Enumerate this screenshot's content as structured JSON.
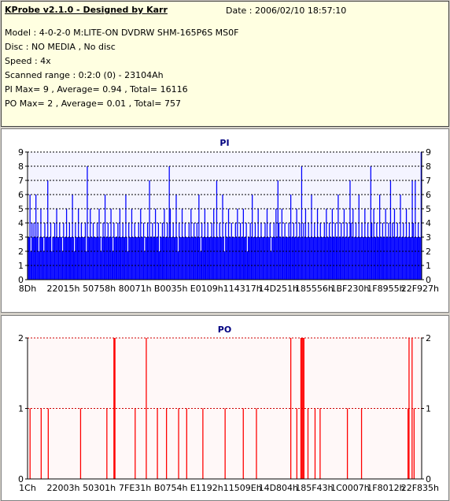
{
  "header": {
    "title": "KProbe v2.1.0 - Designed by Karr",
    "date": "Date : 2006/02/10 18:57:10",
    "lines": [
      "Model : 4-0-2-0 M:LITE-ON DVDRW SHM-165P6S MS0F",
      "Disc : NO MEDIA , No disc",
      "Speed : 4x",
      "Scanned range : 0:2:0 (0) - 23104Ah",
      "PI Max= 9 , Average= 0.94 , Total= 16116",
      "PO Max= 2 , Average= 0.01 , Total= 757"
    ]
  },
  "chart_data": [
    {
      "type": "bar",
      "title": "PI",
      "ylim": [
        0,
        9
      ],
      "yticks": [
        "0",
        "1",
        "2",
        "3",
        "4",
        "5",
        "6",
        "7",
        "8",
        "9"
      ],
      "xticks": [
        "8Dh",
        "22015h",
        "50758h",
        "80071h",
        "B0035h",
        "E0109h",
        "114317h",
        "14D251h",
        "185556h",
        "1BF230h",
        "1F8955h",
        "22F927h"
      ],
      "color": "#0000ff",
      "grid": true,
      "values": [
        3,
        3,
        6,
        2,
        4,
        3,
        4,
        3,
        6,
        3,
        4,
        2,
        3,
        5,
        3,
        3,
        2,
        4,
        3,
        3,
        7,
        3,
        3,
        4,
        2,
        3,
        3,
        4,
        3,
        5,
        3,
        3,
        4,
        3,
        3,
        2,
        4,
        3,
        3,
        5,
        3,
        3,
        4,
        3,
        3,
        6,
        3,
        2,
        4,
        3,
        3,
        5,
        3,
        3,
        4,
        3,
        3,
        3,
        4,
        2,
        8,
        3,
        3,
        5,
        3,
        3,
        4,
        3,
        3,
        3,
        4,
        3,
        5,
        3,
        2,
        3,
        4,
        3,
        6,
        3,
        3,
        4,
        3,
        3,
        5,
        3,
        2,
        4,
        3,
        3,
        3,
        4,
        3,
        5,
        3,
        3,
        4,
        3,
        3,
        6,
        3,
        2,
        4,
        3,
        3,
        5,
        3,
        3,
        4,
        3,
        3,
        3,
        4,
        3,
        5,
        3,
        3,
        4,
        2,
        3,
        3,
        4,
        3,
        7,
        3,
        3,
        4,
        3,
        3,
        5,
        3,
        3,
        4,
        2,
        3,
        3,
        4,
        3,
        5,
        3,
        3,
        4,
        3,
        8,
        5,
        3,
        3,
        4,
        3,
        3,
        6,
        3,
        2,
        4,
        3,
        3,
        5,
        3,
        3,
        4,
        3,
        3,
        3,
        4,
        3,
        5,
        3,
        3,
        4,
        3,
        3,
        4,
        3,
        6,
        3,
        2,
        4,
        3,
        3,
        5,
        3,
        3,
        4,
        3,
        3,
        3,
        4,
        3,
        5,
        3,
        3,
        7,
        3,
        3,
        4,
        3,
        3,
        6,
        3,
        2,
        4,
        3,
        3,
        5,
        3,
        3,
        4,
        3,
        3,
        3,
        4,
        3,
        5,
        3,
        3,
        4,
        3,
        3,
        5,
        3,
        3,
        4,
        2,
        3,
        3,
        4,
        3,
        6,
        3,
        3,
        4,
        3,
        3,
        5,
        3,
        3,
        4,
        3,
        3,
        3,
        4,
        3,
        5,
        3,
        3,
        4,
        2,
        3,
        3,
        4,
        3,
        5,
        3,
        7,
        4,
        3,
        3,
        5,
        3,
        3,
        4,
        3,
        3,
        3,
        4,
        3,
        6,
        3,
        3,
        4,
        3,
        3,
        5,
        3,
        3,
        4,
        3,
        8,
        3,
        4,
        3,
        5,
        3,
        3,
        4,
        3,
        3,
        6,
        3,
        3,
        4,
        3,
        3,
        5,
        3,
        3,
        4,
        3,
        3,
        3,
        4,
        3,
        5,
        3,
        3,
        4,
        3,
        3,
        5,
        3,
        3,
        4,
        3,
        3,
        6,
        3,
        3,
        4,
        3,
        3,
        5,
        3,
        3,
        4,
        3,
        3,
        7,
        4,
        3,
        5,
        3,
        3,
        4,
        3,
        3,
        6,
        3,
        3,
        4,
        3,
        3,
        5,
        3,
        3,
        4,
        3,
        3,
        8,
        4,
        3,
        5,
        3,
        3,
        4,
        3,
        3,
        6,
        3,
        3,
        4,
        3,
        3,
        5,
        3,
        3,
        4,
        3,
        7,
        3,
        4,
        3,
        5,
        3,
        3,
        4,
        3,
        3,
        6,
        3,
        3,
        4,
        3,
        3,
        5,
        3,
        3,
        4,
        3,
        3,
        7,
        4,
        3,
        7,
        3,
        3,
        4,
        3,
        3,
        9
      ]
    },
    {
      "type": "bar",
      "title": "PO",
      "ylim": [
        0,
        2
      ],
      "yticks": [
        "0",
        "1",
        "2"
      ],
      "xticks": [
        "1Ch",
        "22003h",
        "50301h",
        "7FE31h",
        "B0754h",
        "E1192h",
        "11509Eh",
        "14D804h",
        "185F43h",
        "1C0007h",
        "1F8012h",
        "22F835h"
      ],
      "color": "#ff0000",
      "grid": true,
      "values": [
        0,
        0,
        1,
        0,
        0,
        0,
        0,
        0,
        0,
        0,
        0,
        0,
        0,
        1,
        0,
        0,
        0,
        0,
        0,
        0,
        1,
        0,
        0,
        0,
        0,
        0,
        0,
        0,
        0,
        0,
        0,
        0,
        0,
        0,
        0,
        0,
        0,
        0,
        0,
        0,
        0,
        0,
        0,
        0,
        0,
        0,
        0,
        0,
        0,
        0,
        0,
        0,
        1,
        0,
        0,
        0,
        0,
        0,
        0,
        0,
        0,
        0,
        0,
        0,
        0,
        0,
        0,
        0,
        0,
        0,
        0,
        0,
        0,
        0,
        0,
        0,
        0,
        0,
        1,
        0,
        0,
        0,
        0,
        0,
        0,
        2,
        2,
        0,
        0,
        0,
        0,
        0,
        0,
        0,
        0,
        0,
        0,
        0,
        0,
        0,
        0,
        0,
        0,
        0,
        0,
        0,
        1,
        0,
        0,
        0,
        0,
        0,
        0,
        0,
        0,
        0,
        0,
        2,
        0,
        0,
        0,
        0,
        0,
        0,
        0,
        0,
        0,
        0,
        1,
        0,
        0,
        0,
        0,
        0,
        0,
        0,
        0,
        1,
        0,
        0,
        0,
        0,
        0,
        0,
        0,
        0,
        0,
        0,
        0,
        1,
        0,
        0,
        0,
        0,
        0,
        0,
        0,
        1,
        0,
        0,
        0,
        0,
        0,
        0,
        0,
        0,
        0,
        0,
        0,
        0,
        0,
        0,
        0,
        1,
        0,
        0,
        0,
        0,
        0,
        0,
        0,
        0,
        0,
        0,
        0,
        0,
        0,
        0,
        0,
        0,
        0,
        0,
        0,
        0,
        0,
        1,
        0,
        0,
        0,
        0,
        0,
        0,
        0,
        0,
        0,
        0,
        0,
        0,
        0,
        0,
        0,
        0,
        0,
        1,
        0,
        0,
        0,
        0,
        0,
        0,
        0,
        0,
        0,
        0,
        0,
        0,
        1,
        0,
        0,
        0,
        0,
        0,
        0,
        0,
        0,
        0,
        0,
        0,
        0,
        0,
        0,
        0,
        0,
        0,
        0,
        0,
        0,
        0,
        0,
        0,
        0,
        0,
        0,
        0,
        0,
        0,
        0,
        0,
        0,
        0,
        2,
        0,
        0,
        0,
        0,
        0,
        1,
        0,
        0,
        0,
        2,
        2,
        2,
        2,
        0,
        0,
        0,
        1,
        0,
        0,
        0,
        0,
        0,
        0,
        1,
        0,
        0,
        0,
        0,
        1,
        0,
        0,
        0,
        0,
        0,
        0,
        0,
        0,
        0,
        0,
        0,
        0,
        0,
        0,
        0,
        0,
        0,
        0,
        0,
        0,
        0,
        0,
        0,
        0,
        0,
        0,
        1,
        0,
        0,
        0,
        0,
        0,
        0,
        0,
        0,
        0,
        0,
        0,
        0,
        0,
        1,
        0,
        0,
        0,
        0,
        0,
        0,
        0,
        0,
        0,
        0,
        0,
        0,
        0,
        0,
        0,
        0,
        0,
        0,
        0,
        0,
        0,
        0,
        0,
        0,
        0,
        0,
        0,
        0,
        0,
        0,
        0,
        0,
        0,
        0,
        0,
        0,
        0,
        0,
        0,
        0,
        0,
        0,
        0,
        0,
        0,
        1,
        2,
        0,
        0,
        2,
        0,
        1,
        0,
        0,
        0,
        0,
        0,
        0,
        0
      ]
    }
  ]
}
